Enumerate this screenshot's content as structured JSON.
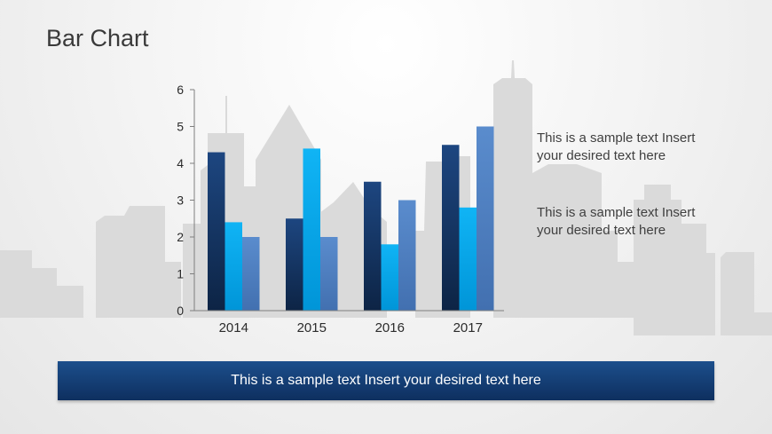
{
  "slide": {
    "title": "Bar Chart",
    "notes": [
      {
        "text": "This is a sample text Insert your desired text here"
      },
      {
        "text": "This is a sample text Insert your desired text here"
      }
    ],
    "banner": "This is a sample text Insert your desired text here"
  },
  "colors": {
    "series_dark": "#1a3f73",
    "series_bright": "#00aaee",
    "series_medium": "#4f81c5",
    "banner": "#143f78",
    "skyline": "#d8d8d8"
  },
  "chart_data": {
    "type": "bar",
    "categories": [
      "2014",
      "2015",
      "2016",
      "2017"
    ],
    "series": [
      {
        "values": [
          4.3,
          2.5,
          3.5,
          4.5
        ]
      },
      {
        "values": [
          2.4,
          4.4,
          1.8,
          2.8
        ]
      },
      {
        "values": [
          2.0,
          2.0,
          3.0,
          5.0
        ]
      }
    ],
    "ylim": [
      0,
      6
    ],
    "yticks": [
      0,
      1,
      2,
      3,
      4,
      5,
      6
    ],
    "grid": false,
    "legend": "none"
  }
}
